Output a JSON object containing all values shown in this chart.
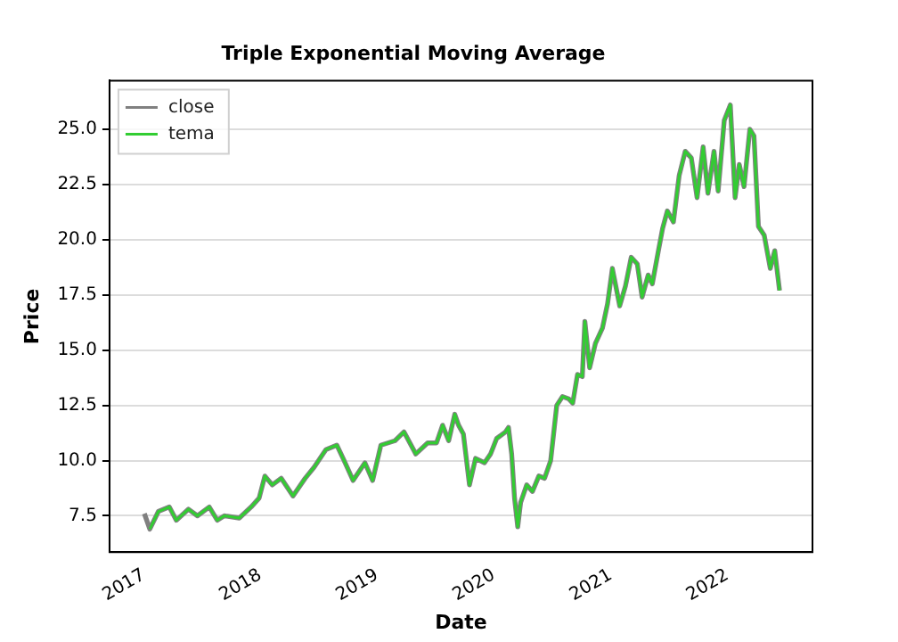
{
  "chart_data": {
    "type": "line",
    "title": "Triple Exponential Moving Average",
    "xlabel": "Date",
    "ylabel": "Price",
    "x": [
      "2017-01-03",
      "2017-01-20",
      "2017-02-16",
      "2017-03-22",
      "2017-04-13",
      "2017-05-21",
      "2017-06-18",
      "2017-07-25",
      "2017-08-19",
      "2017-09-10",
      "2017-10-27",
      "2017-12-03",
      "2017-12-28",
      "2018-01-15",
      "2018-02-07",
      "2018-03-07",
      "2018-04-13",
      "2018-05-21",
      "2018-06-18",
      "2018-07-25",
      "2018-08-28",
      "2018-09-20",
      "2018-10-18",
      "2018-11-24",
      "2018-12-18",
      "2019-01-13",
      "2019-02-26",
      "2019-03-26",
      "2019-05-02",
      "2019-06-08",
      "2019-07-06",
      "2019-07-25",
      "2019-08-13",
      "2019-09-01",
      "2019-09-13",
      "2019-09-28",
      "2019-10-17",
      "2019-11-05",
      "2019-12-03",
      "2019-12-22",
      "2020-01-10",
      "2020-02-07",
      "2020-02-16",
      "2020-02-26",
      "2020-03-06",
      "2020-03-16",
      "2020-03-25",
      "2020-04-13",
      "2020-05-01",
      "2020-05-21",
      "2020-06-08",
      "2020-06-27",
      "2020-07-16",
      "2020-08-03",
      "2020-08-22",
      "2020-09-04",
      "2020-09-19",
      "2020-10-04",
      "2020-10-12",
      "2020-10-27",
      "2020-11-14",
      "2020-12-06",
      "2020-12-22",
      "2021-01-06",
      "2021-01-29",
      "2021-02-16",
      "2021-03-06",
      "2021-03-25",
      "2021-04-09",
      "2021-04-28",
      "2021-05-11",
      "2021-05-30",
      "2021-06-12",
      "2021-06-27",
      "2021-07-16",
      "2021-08-03",
      "2021-08-22",
      "2021-09-10",
      "2021-09-28",
      "2021-10-17",
      "2021-11-01",
      "2021-11-20",
      "2021-12-03",
      "2021-12-22",
      "2022-01-10",
      "2022-01-25",
      "2022-02-07",
      "2022-02-22",
      "2022-03-12",
      "2022-03-25",
      "2022-04-08",
      "2022-04-26",
      "2022-05-15",
      "2022-05-29",
      "2022-06-13"
    ],
    "series": [
      {
        "name": "close",
        "color": "#808080",
        "values": [
          7.6,
          6.9,
          7.7,
          7.9,
          7.3,
          7.8,
          7.5,
          7.9,
          7.3,
          7.5,
          7.4,
          7.9,
          8.3,
          9.3,
          8.9,
          9.2,
          8.4,
          9.2,
          9.7,
          10.5,
          10.7,
          10,
          9.1,
          9.9,
          9.1,
          10.7,
          10.9,
          11.3,
          10.3,
          10.8,
          10.8,
          11.6,
          10.9,
          12.1,
          11.6,
          11.2,
          8.9,
          10.1,
          9.9,
          10.3,
          11,
          11.3,
          11.5,
          10.3,
          8.3,
          7,
          8.1,
          8.9,
          8.6,
          9.3,
          9.2,
          10,
          12.5,
          12.9,
          12.8,
          12.6,
          13.9,
          13.8,
          16.3,
          14.2,
          15.3,
          16,
          17.1,
          18.7,
          17,
          17.9,
          19.2,
          18.9,
          17.4,
          18.4,
          18,
          19.5,
          20.5,
          21.3,
          20.8,
          22.9,
          24,
          23.7,
          21.9,
          24.2,
          22.1,
          24,
          22.2,
          25.4,
          26.1,
          21.9,
          23.4,
          22.4,
          25,
          24.7,
          20.6,
          20.2,
          18.7,
          19.5,
          17.7
        ]
      },
      {
        "name": "tema",
        "color": "#32cd32",
        "x": [
          "2017-01-20",
          "2017-02-16",
          "2017-03-22",
          "2017-04-13",
          "2017-05-21",
          "2017-06-18",
          "2017-07-25",
          "2017-08-19",
          "2017-09-10",
          "2017-10-27",
          "2017-12-03",
          "2017-12-28",
          "2018-01-15",
          "2018-02-07",
          "2018-03-07",
          "2018-04-13",
          "2018-05-21",
          "2018-06-18",
          "2018-07-25",
          "2018-08-28",
          "2018-09-20",
          "2018-10-18",
          "2018-11-24",
          "2018-12-18",
          "2019-01-13",
          "2019-02-26",
          "2019-03-26",
          "2019-05-02",
          "2019-06-08",
          "2019-07-06",
          "2019-07-25",
          "2019-08-13",
          "2019-09-01",
          "2019-09-13",
          "2019-09-28",
          "2019-10-17",
          "2019-11-05",
          "2019-12-03",
          "2019-12-22",
          "2020-01-10",
          "2020-02-07",
          "2020-02-16",
          "2020-02-26",
          "2020-03-06",
          "2020-03-16",
          "2020-03-25",
          "2020-04-13",
          "2020-05-01",
          "2020-05-21",
          "2020-06-08",
          "2020-06-27",
          "2020-07-16",
          "2020-08-03",
          "2020-08-22",
          "2020-09-04",
          "2020-09-19",
          "2020-10-04",
          "2020-10-12",
          "2020-10-27",
          "2020-11-14",
          "2020-12-06",
          "2020-12-22",
          "2021-01-06",
          "2021-01-29",
          "2021-02-16",
          "2021-03-06",
          "2021-03-25",
          "2021-04-09",
          "2021-04-28",
          "2021-05-11",
          "2021-05-30",
          "2021-06-12",
          "2021-06-27",
          "2021-07-16",
          "2021-08-03",
          "2021-08-22",
          "2021-09-10",
          "2021-09-28",
          "2021-10-17",
          "2021-11-01",
          "2021-11-20",
          "2021-12-03",
          "2021-12-22",
          "2022-01-10",
          "2022-01-25",
          "2022-02-07",
          "2022-02-22",
          "2022-03-12",
          "2022-03-25",
          "2022-04-08",
          "2022-04-26",
          "2022-05-15",
          "2022-05-29",
          "2022-06-13"
        ],
        "values": [
          6.9,
          7.7,
          7.9,
          7.3,
          7.8,
          7.5,
          7.9,
          7.3,
          7.5,
          7.4,
          7.9,
          8.3,
          9.3,
          8.9,
          9.2,
          8.4,
          9.2,
          9.7,
          10.5,
          10.7,
          10,
          9.1,
          9.9,
          9.1,
          10.7,
          10.9,
          11.3,
          10.3,
          10.8,
          10.8,
          11.6,
          10.9,
          12.1,
          11.6,
          11.2,
          8.9,
          10.1,
          9.9,
          10.3,
          11,
          11.3,
          11.5,
          10.3,
          8.3,
          7,
          8.1,
          8.9,
          8.6,
          9.3,
          9.2,
          10,
          12.5,
          12.9,
          12.8,
          12.6,
          13.9,
          13.8,
          16.3,
          14.2,
          15.3,
          16,
          17.1,
          18.7,
          17,
          17.9,
          19.2,
          18.9,
          17.4,
          18.4,
          18,
          19.5,
          20.5,
          21.3,
          20.8,
          22.9,
          24,
          23.7,
          21.9,
          24.2,
          22.1,
          24,
          22.2,
          25.4,
          26.1,
          21.9,
          23.4,
          22.4,
          25,
          24.7,
          20.6,
          20.2,
          18.7,
          19.5,
          17.7
        ]
      }
    ],
    "xlim": [
      "2016-09-16",
      "2022-09-24"
    ],
    "xticks": [
      "2017",
      "2018",
      "2019",
      "2020",
      "2021",
      "2022"
    ],
    "ylim": [
      5.85,
      27.2
    ],
    "yticks": [
      {
        "value": 7.5,
        "label": "7.5"
      },
      {
        "value": 10,
        "label": "10.0"
      },
      {
        "value": 12.5,
        "label": "12.5"
      },
      {
        "value": 15,
        "label": "15.0"
      },
      {
        "value": 17.5,
        "label": "17.5"
      },
      {
        "value": 20,
        "label": "20.0"
      },
      {
        "value": 22.5,
        "label": "22.5"
      },
      {
        "value": 25,
        "label": "25.0"
      }
    ],
    "grid": "y",
    "legend": "top left",
    "marker": "none",
    "line_style": "solid"
  }
}
